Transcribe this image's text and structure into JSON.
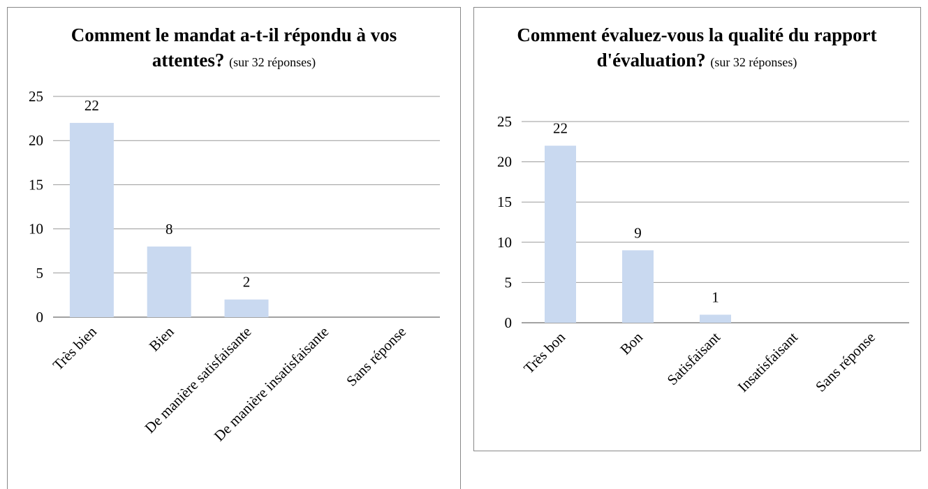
{
  "chart_data": [
    {
      "type": "bar",
      "title": "Comment le mandat a-t-il répondu à vos attentes?",
      "subtitle": "(sur 32 réponses)",
      "categories": [
        "Très bien",
        "Bien",
        "De manière satisfaisante",
        "De manière insatisfaisante",
        "Sans réponse"
      ],
      "values": [
        22,
        8,
        2,
        0,
        0
      ],
      "value_labels": [
        22,
        8,
        2,
        null,
        null
      ],
      "color": "#c9d9f0",
      "ylim": [
        0,
        25
      ],
      "yticks": [
        0,
        5,
        10,
        15,
        20,
        25
      ],
      "grid": true
    },
    {
      "type": "bar",
      "title": "Comment évaluez-vous la qualité du rapport d'évaluation?",
      "subtitle": "(sur 32 réponses)",
      "categories": [
        "Très bon",
        "Bon",
        "Satisfaisant",
        "Insatisfaisant",
        "Sans réponse"
      ],
      "values": [
        22,
        9,
        1,
        0,
        0
      ],
      "value_labels": [
        22,
        9,
        1,
        null,
        null
      ],
      "color": "#c9d9f0",
      "ylim": [
        0,
        25
      ],
      "yticks": [
        0,
        5,
        10,
        15,
        20,
        25
      ],
      "grid": true
    }
  ]
}
